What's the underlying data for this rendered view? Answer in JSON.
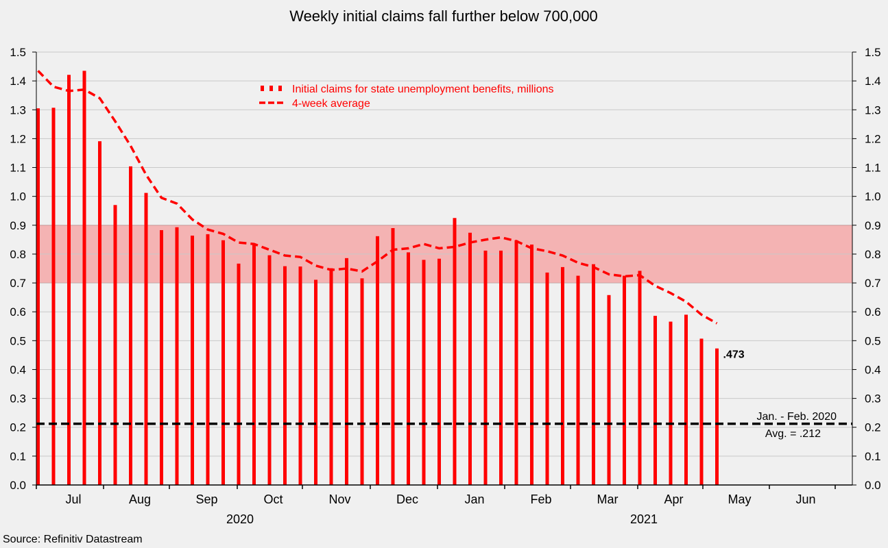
{
  "chart_data": {
    "type": "bar",
    "title": "Weekly initial claims fall further below 700,000",
    "source": "Source: Refinitiv Datastream",
    "ylim": [
      0,
      1.5
    ],
    "yticks": [
      "0.0",
      "0.1",
      "0.2",
      "0.3",
      "0.4",
      "0.5",
      "0.6",
      "0.7",
      "0.8",
      "0.9",
      "1.0",
      "1.1",
      "1.2",
      "1.3",
      "1.4",
      "1.5"
    ],
    "x_month_labels": [
      "Jul",
      "Aug",
      "Sep",
      "Oct",
      "Nov",
      "Dec",
      "Jan",
      "Feb",
      "Mar",
      "Apr",
      "May",
      "Jun"
    ],
    "year_labels": [
      "2020",
      "2021"
    ],
    "shaded_band": {
      "low": 0.7,
      "high": 0.9
    },
    "series": [
      {
        "name": "Initial claims for state unemployment benefits,  millions",
        "style": "bar",
        "color": "#ff0000",
        "values": [
          1.305,
          1.307,
          1.421,
          1.435,
          1.191,
          0.97,
          1.104,
          1.012,
          0.883,
          0.893,
          0.864,
          0.869,
          0.848,
          0.767,
          0.836,
          0.796,
          0.758,
          0.757,
          0.711,
          0.751,
          0.786,
          0.716,
          0.862,
          0.89,
          0.806,
          0.78,
          0.784,
          0.925,
          0.874,
          0.812,
          0.812,
          0.848,
          0.833,
          0.736,
          0.755,
          0.725,
          0.765,
          0.658,
          0.725,
          0.742,
          0.586,
          0.566,
          0.59,
          0.507,
          0.473
        ]
      },
      {
        "name": "4-week average",
        "style": "dashed-line",
        "color": "#ff0000",
        "values": [
          1.435,
          1.38,
          1.365,
          1.37,
          1.34,
          1.26,
          1.175,
          1.075,
          0.995,
          0.975,
          0.92,
          0.885,
          0.87,
          0.84,
          0.835,
          0.815,
          0.795,
          0.79,
          0.76,
          0.745,
          0.75,
          0.74,
          0.775,
          0.815,
          0.82,
          0.835,
          0.82,
          0.825,
          0.84,
          0.85,
          0.858,
          0.845,
          0.82,
          0.81,
          0.795,
          0.77,
          0.755,
          0.73,
          0.723,
          0.727,
          0.69,
          0.665,
          0.635,
          0.59,
          0.56
        ]
      }
    ],
    "reference_line": {
      "value": 0.212,
      "label_line1": "Jan. - Feb. 2020",
      "label_line2": "Avg. = .212",
      "color": "#000000"
    },
    "last_value_label": ".473"
  }
}
